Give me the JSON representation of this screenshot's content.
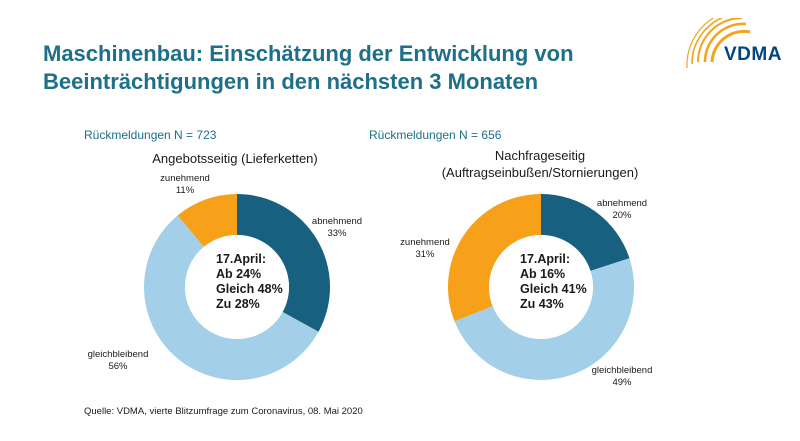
{
  "colors": {
    "title": "#1d6f8a",
    "text": "#1a1a1a",
    "n_label": "#1d6f8a",
    "logo": "#00467f",
    "logo_arcs": "#f2a51c",
    "abnehmend": "#18607f",
    "gleichbleibend": "#a3d0e8",
    "zunehmend": "#f7a11a"
  },
  "header": {
    "title_line1": "Maschinenbau: Einschätzung der Entwicklung von",
    "title_line2": "Beeinträchtigungen in den nächsten 3 Monaten",
    "logo_text": "VDMA",
    "logo_icon": "vdma-logo-arcs-icon"
  },
  "chart_data": [
    {
      "type": "pie",
      "donut": true,
      "n_label": "Rückmeldungen N = 723",
      "title_lines": [
        "Angebotsseitig (Lieferketten)"
      ],
      "slices": [
        {
          "name": "abnehmend",
          "value": 33,
          "label": "33%",
          "color": "#18607f"
        },
        {
          "name": "gleichbleibend",
          "value": 56,
          "label": "56%",
          "color": "#a3d0e8"
        },
        {
          "name": "zunehmend",
          "value": 11,
          "label": "11%",
          "color": "#f7a11a"
        }
      ],
      "center_lines": [
        "17.April:",
        "Ab 24%",
        "Gleich 48%",
        "Zu 28%"
      ]
    },
    {
      "type": "pie",
      "donut": true,
      "n_label": "Rückmeldungen N = 656",
      "title_lines": [
        "Nachfrageseitig",
        "(Auftragseinbußen/Stornierungen)"
      ],
      "slices": [
        {
          "name": "abnehmend",
          "value": 20,
          "label": "20%",
          "color": "#18607f"
        },
        {
          "name": "gleichbleibend",
          "value": 49,
          "label": "49%",
          "color": "#a3d0e8"
        },
        {
          "name": "zunehmend",
          "value": 31,
          "label": "31%",
          "color": "#f7a11a"
        }
      ],
      "center_lines": [
        "17.April:",
        "Ab 16%",
        "Gleich 41%",
        "Zu 43%"
      ]
    }
  ],
  "footer": {
    "source": "Quelle: VDMA, vierte Blitzumfrage zum Coronavirus, 08. Mai 2020"
  }
}
